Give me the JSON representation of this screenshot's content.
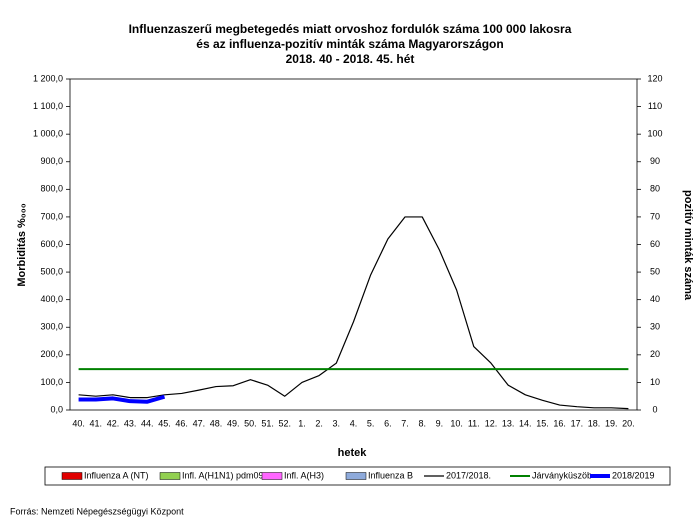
{
  "chart_data": {
    "type": "line",
    "title": [
      "Influenzaszerű megbetegedés miatt orvoshoz fordulók száma 100 000 lakosra",
      "és az influenza-pozitív minták száma Magyarországon",
      "2018. 40 - 2018. 45. hét"
    ],
    "ylabel": "Morbiditás %₀₀₀",
    "y2label": "pozitív minták száma",
    "xlabel": "hetek",
    "source": "Forrás: Nemzeti Népegészségügyi Központ",
    "categories": [
      "40.",
      "41.",
      "42.",
      "43.",
      "44.",
      "45.",
      "46.",
      "47.",
      "48.",
      "49.",
      "50.",
      "51.",
      "52.",
      "1.",
      "2.",
      "3.",
      "4.",
      "5.",
      "6.",
      "7.",
      "8.",
      "9.",
      "10.",
      "11.",
      "12.",
      "13.",
      "14.",
      "15.",
      "16.",
      "17.",
      "18.",
      "19.",
      "20."
    ],
    "ylim": [
      0,
      1200
    ],
    "yticks": [
      {
        "value": 0,
        "label": "0,0"
      },
      {
        "value": 100,
        "label": "100,0"
      },
      {
        "value": 200,
        "label": "200,0"
      },
      {
        "value": 300,
        "label": "300,0"
      },
      {
        "value": 400,
        "label": "400,0"
      },
      {
        "value": 500,
        "label": "500,0"
      },
      {
        "value": 600,
        "label": "600,0"
      },
      {
        "value": 700,
        "label": "700,0"
      },
      {
        "value": 800,
        "label": "800,0"
      },
      {
        "value": 900,
        "label": "900,0"
      },
      {
        "value": 1000,
        "label": "1 000,0"
      },
      {
        "value": 1100,
        "label": "1 100,0"
      },
      {
        "value": 1200,
        "label": "1 200,0"
      }
    ],
    "y2lim": [
      0,
      120
    ],
    "y2ticks": [
      0,
      10,
      20,
      30,
      40,
      50,
      60,
      70,
      80,
      90,
      100,
      110,
      120
    ],
    "series": [
      {
        "name": "Influenza A (NT)",
        "color": "#e00000",
        "type": "bar",
        "axis": "y2"
      },
      {
        "name": "Infl. A(H1N1) pdm09",
        "color": "#92d050",
        "type": "bar",
        "axis": "y2"
      },
      {
        "name": "Infl. A(H3)",
        "color": "#ff66ff",
        "type": "bar",
        "axis": "y2"
      },
      {
        "name": "Influenza B",
        "color": "#8eaadb",
        "type": "bar",
        "axis": "y2"
      },
      {
        "name": "2017/2018.",
        "color": "#000000",
        "type": "line",
        "values": [
          55,
          50,
          55,
          45,
          45,
          55,
          60,
          72,
          85,
          88,
          110,
          90,
          50,
          100,
          125,
          170,
          320,
          490,
          620,
          700,
          700,
          580,
          435,
          230,
          170,
          90,
          55,
          35,
          18,
          12,
          8,
          8,
          5
        ]
      },
      {
        "name": "Járványküszöb",
        "color": "#008000",
        "type": "line",
        "values": [
          148,
          148,
          148,
          148,
          148,
          148,
          148,
          148,
          148,
          148,
          148,
          148,
          148,
          148,
          148,
          148,
          148,
          148,
          148,
          148,
          148,
          148,
          148,
          148,
          148,
          148,
          148,
          148,
          148,
          148,
          148,
          148,
          148
        ]
      },
      {
        "name": "2018/2019",
        "color": "#0000ff",
        "type": "line",
        "values": [
          38,
          38,
          42,
          32,
          30,
          48,
          null,
          null,
          null,
          null,
          null,
          null,
          null,
          null,
          null,
          null,
          null,
          null,
          null,
          null,
          null,
          null,
          null,
          null,
          null,
          null,
          null,
          null,
          null,
          null,
          null,
          null,
          null
        ]
      }
    ]
  }
}
